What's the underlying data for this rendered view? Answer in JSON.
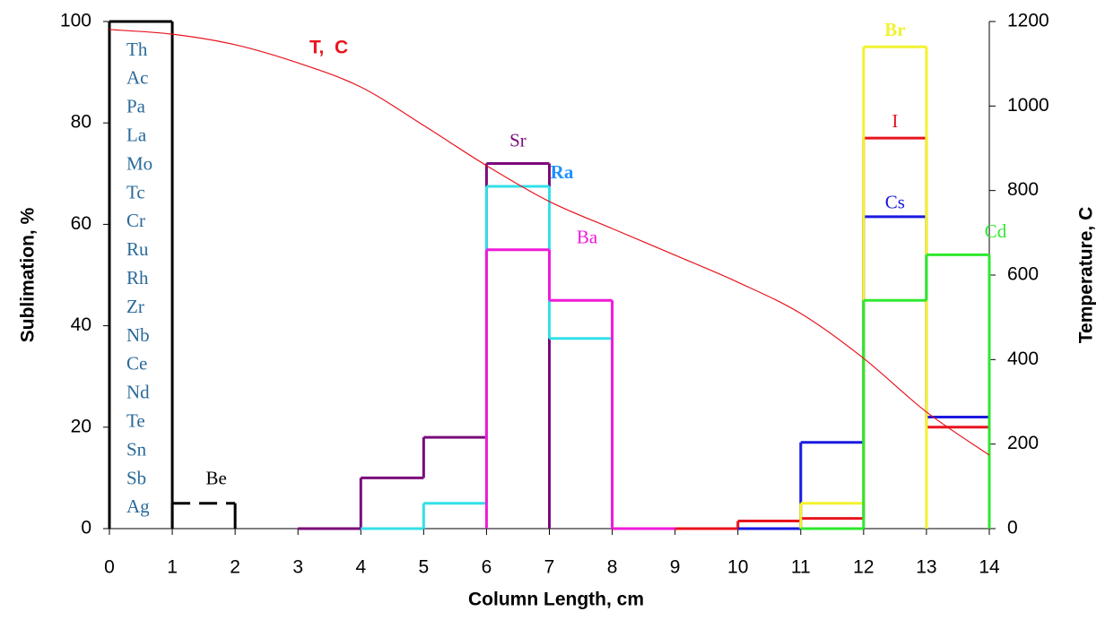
{
  "chart_data": {
    "type": "step",
    "x_label": "Column Length, cm",
    "y_label": "Sublimation, %",
    "y2_label": "Temperature,  C",
    "xlim": [
      0,
      14
    ],
    "xticks": [
      0,
      1,
      2,
      3,
      4,
      5,
      6,
      7,
      8,
      9,
      10,
      11,
      12,
      13,
      14
    ],
    "ylim": [
      0,
      100
    ],
    "yticks": [
      0,
      20,
      40,
      60,
      80,
      100
    ],
    "y2lim": [
      0,
      1200
    ],
    "y2ticks": [
      0,
      200,
      400,
      600,
      800,
      1000,
      1200
    ],
    "element_list": [
      "Th",
      "Ac",
      "Pa",
      "La",
      "Mo",
      "Tc",
      "Cr",
      "Ru",
      "Rh",
      "Zr",
      "Nb",
      "Ce",
      "Nd",
      "Te",
      "Sn",
      "Sb",
      "Ag"
    ],
    "series": [
      {
        "color": "#000000",
        "bins": [
          0,
          1
        ],
        "values": [
          100
        ]
      },
      {
        "name": "Be",
        "color": "#000000",
        "dashed": true,
        "bins": [
          1,
          2
        ],
        "values": [
          5
        ]
      },
      {
        "name": "Sr",
        "color": "#7b0a7b",
        "bins": [
          3,
          4,
          5,
          6,
          7
        ],
        "values": [
          0,
          10,
          18,
          72
        ]
      },
      {
        "name": "Ra",
        "color": "#33e0e8",
        "bins": [
          4,
          5,
          6,
          7,
          8
        ],
        "values": [
          0,
          5,
          67.5,
          37.5
        ]
      },
      {
        "name": "Ba",
        "color": "#f01ad8",
        "bins": [
          6,
          7,
          8,
          9
        ],
        "values": [
          55,
          45,
          0
        ]
      },
      {
        "name": "I",
        "color": "#e8141e",
        "bins": [
          9,
          10,
          11,
          12,
          13,
          14
        ],
        "values": [
          0,
          1.5,
          2,
          77,
          20
        ]
      },
      {
        "name": "Cs",
        "color": "#1a1ae0",
        "bins": [
          10,
          11,
          12,
          13,
          14
        ],
        "values": [
          0,
          17,
          61.5,
          22
        ]
      },
      {
        "name": "Br",
        "color": "#f2f230",
        "bins": [
          11,
          12,
          13
        ],
        "values": [
          5,
          95
        ]
      },
      {
        "name": "Cd",
        "color": "#2ee82e",
        "bins": [
          11,
          12,
          13,
          14
        ],
        "values": [
          0,
          45,
          54
        ]
      },
      {
        "name": "T,  C",
        "type": "line",
        "axis": "y2",
        "color": "#e8141e",
        "x": [
          0,
          1,
          2,
          3,
          4,
          5,
          6,
          7,
          8,
          9,
          10,
          11,
          12,
          13,
          14
        ],
        "values": [
          1181,
          1170,
          1145,
          1102,
          1045,
          954,
          859,
          774,
          710,
          647,
          583,
          509,
          403,
          276,
          174
        ]
      }
    ]
  }
}
